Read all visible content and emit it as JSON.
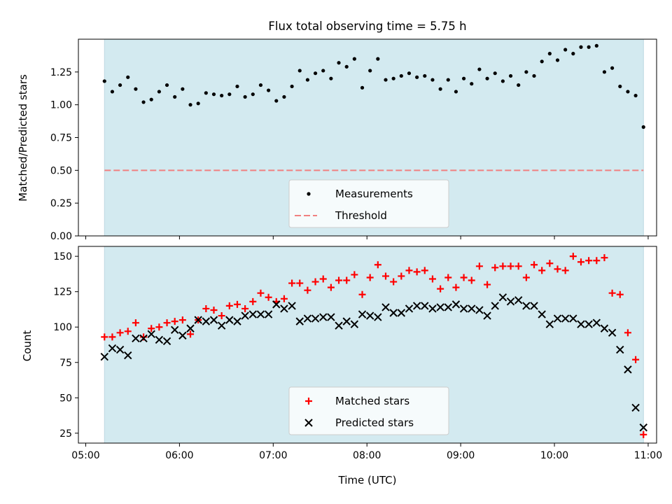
{
  "chart_data": [
    {
      "type": "scatter",
      "title": "Flux total observing time = 5.75 h",
      "xlabel": "",
      "ylabel": "Matched/Predicted stars",
      "xlim": [
        "05:00",
        "11:00"
      ],
      "ylim": [
        0,
        1.5
      ],
      "yticks": [
        "0.00",
        "0.25",
        "0.50",
        "0.75",
        "1.00",
        "1.25"
      ],
      "observing_window": [
        "05:12",
        "10:57"
      ],
      "legend_position": "bottom-center",
      "series": [
        {
          "name": "Measurements",
          "marker": "dot",
          "color": "#000000",
          "x": [
            "05:12",
            "05:17",
            "05:22",
            "05:27",
            "05:32",
            "05:37",
            "05:42",
            "05:47",
            "05:52",
            "05:57",
            "06:02",
            "06:07",
            "06:12",
            "06:17",
            "06:22",
            "06:27",
            "06:32",
            "06:37",
            "06:42",
            "06:47",
            "06:52",
            "06:57",
            "07:02",
            "07:07",
            "07:12",
            "07:17",
            "07:22",
            "07:27",
            "07:32",
            "07:37",
            "07:42",
            "07:47",
            "07:52",
            "07:57",
            "08:02",
            "08:07",
            "08:12",
            "08:17",
            "08:22",
            "08:27",
            "08:32",
            "08:37",
            "08:42",
            "08:47",
            "08:52",
            "08:57",
            "09:02",
            "09:07",
            "09:12",
            "09:17",
            "09:22",
            "09:27",
            "09:32",
            "09:37",
            "09:42",
            "09:47",
            "09:52",
            "09:57",
            "10:02",
            "10:07",
            "10:12",
            "10:17",
            "10:22",
            "10:27",
            "10:32",
            "10:37",
            "10:42",
            "10:47",
            "10:52",
            "10:57"
          ],
          "y": [
            1.18,
            1.1,
            1.15,
            1.21,
            1.12,
            1.02,
            1.04,
            1.1,
            1.15,
            1.06,
            1.12,
            1.0,
            1.01,
            1.09,
            1.08,
            1.07,
            1.08,
            1.14,
            1.06,
            1.08,
            1.15,
            1.11,
            1.03,
            1.06,
            1.14,
            1.26,
            1.19,
            1.24,
            1.26,
            1.2,
            1.32,
            1.29,
            1.35,
            1.13,
            1.26,
            1.35,
            1.19,
            1.2,
            1.22,
            1.24,
            1.21,
            1.22,
            1.19,
            1.12,
            1.19,
            1.1,
            1.2,
            1.16,
            1.27,
            1.2,
            1.24,
            1.18,
            1.22,
            1.15,
            1.25,
            1.22,
            1.33,
            1.39,
            1.34,
            1.42,
            1.39,
            1.44,
            1.44,
            1.45,
            1.25,
            1.28,
            1.14,
            1.1,
            1.07,
            0.83
          ]
        },
        {
          "name": "Threshold",
          "marker": "dashed-line",
          "color": "#f08080",
          "x": [
            "05:12",
            "10:57"
          ],
          "y": [
            0.5,
            0.5
          ]
        }
      ]
    },
    {
      "type": "scatter",
      "title": "",
      "xlabel": "Time (UTC)",
      "ylabel": "Count",
      "xlim": [
        "05:00",
        "11:00"
      ],
      "ylim": [
        18,
        157
      ],
      "xticks": [
        "05:00",
        "06:00",
        "07:00",
        "08:00",
        "09:00",
        "10:00",
        "11:00"
      ],
      "yticks": [
        "25",
        "50",
        "75",
        "100",
        "125",
        "150"
      ],
      "observing_window": [
        "05:12",
        "10:57"
      ],
      "legend_position": "bottom-center",
      "series": [
        {
          "name": "Matched stars",
          "marker": "plus",
          "color": "#ff0000",
          "x": [
            "05:12",
            "05:17",
            "05:22",
            "05:27",
            "05:32",
            "05:37",
            "05:42",
            "05:47",
            "05:52",
            "05:57",
            "06:02",
            "06:07",
            "06:12",
            "06:17",
            "06:22",
            "06:27",
            "06:32",
            "06:37",
            "06:42",
            "06:47",
            "06:52",
            "06:57",
            "07:02",
            "07:07",
            "07:12",
            "07:17",
            "07:22",
            "07:27",
            "07:32",
            "07:37",
            "07:42",
            "07:47",
            "07:52",
            "07:57",
            "08:02",
            "08:07",
            "08:12",
            "08:17",
            "08:22",
            "08:27",
            "08:32",
            "08:37",
            "08:42",
            "08:47",
            "08:52",
            "08:57",
            "09:02",
            "09:07",
            "09:12",
            "09:17",
            "09:22",
            "09:27",
            "09:32",
            "09:37",
            "09:42",
            "09:47",
            "09:52",
            "09:57",
            "10:02",
            "10:07",
            "10:12",
            "10:17",
            "10:22",
            "10:27",
            "10:32",
            "10:37",
            "10:42",
            "10:47",
            "10:52",
            "10:57"
          ],
          "y": [
            93,
            93,
            96,
            97,
            103,
            93,
            99,
            100,
            103,
            104,
            105,
            95,
            105,
            113,
            112,
            108,
            115,
            116,
            113,
            118,
            124,
            121,
            118,
            120,
            131,
            131,
            126,
            132,
            134,
            128,
            133,
            133,
            137,
            123,
            135,
            144,
            136,
            132,
            136,
            140,
            139,
            140,
            134,
            127,
            135,
            128,
            135,
            133,
            143,
            130,
            142,
            143,
            143,
            143,
            135,
            144,
            140,
            145,
            141,
            140,
            150,
            146,
            147,
            147,
            149,
            124,
            123,
            96,
            77,
            24
          ]
        },
        {
          "name": "Predicted stars",
          "marker": "x",
          "color": "#000000",
          "x": [
            "05:12",
            "05:17",
            "05:22",
            "05:27",
            "05:32",
            "05:37",
            "05:42",
            "05:47",
            "05:52",
            "05:57",
            "06:02",
            "06:07",
            "06:12",
            "06:17",
            "06:22",
            "06:27",
            "06:32",
            "06:37",
            "06:42",
            "06:47",
            "06:52",
            "06:57",
            "07:02",
            "07:07",
            "07:12",
            "07:17",
            "07:22",
            "07:27",
            "07:32",
            "07:37",
            "07:42",
            "07:47",
            "07:52",
            "07:57",
            "08:02",
            "08:07",
            "08:12",
            "08:17",
            "08:22",
            "08:27",
            "08:32",
            "08:37",
            "08:42",
            "08:47",
            "08:52",
            "08:57",
            "09:02",
            "09:07",
            "09:12",
            "09:17",
            "09:22",
            "09:27",
            "09:32",
            "09:37",
            "09:42",
            "09:47",
            "09:52",
            "09:57",
            "10:02",
            "10:07",
            "10:12",
            "10:17",
            "10:22",
            "10:27",
            "10:32",
            "10:37",
            "10:42",
            "10:47",
            "10:52",
            "10:57"
          ],
          "y": [
            79,
            85,
            84,
            80,
            92,
            92,
            95,
            91,
            90,
            98,
            94,
            99,
            105,
            104,
            105,
            101,
            105,
            104,
            108,
            109,
            109,
            109,
            116,
            113,
            115,
            104,
            106,
            106,
            107,
            107,
            101,
            104,
            102,
            109,
            108,
            107,
            114,
            110,
            110,
            113,
            115,
            115,
            113,
            114,
            114,
            116,
            113,
            113,
            112,
            108,
            115,
            121,
            118,
            119,
            115,
            115,
            109,
            102,
            106,
            106,
            106,
            102,
            102,
            103,
            99,
            96,
            84,
            70,
            43,
            29
          ]
        }
      ]
    }
  ]
}
